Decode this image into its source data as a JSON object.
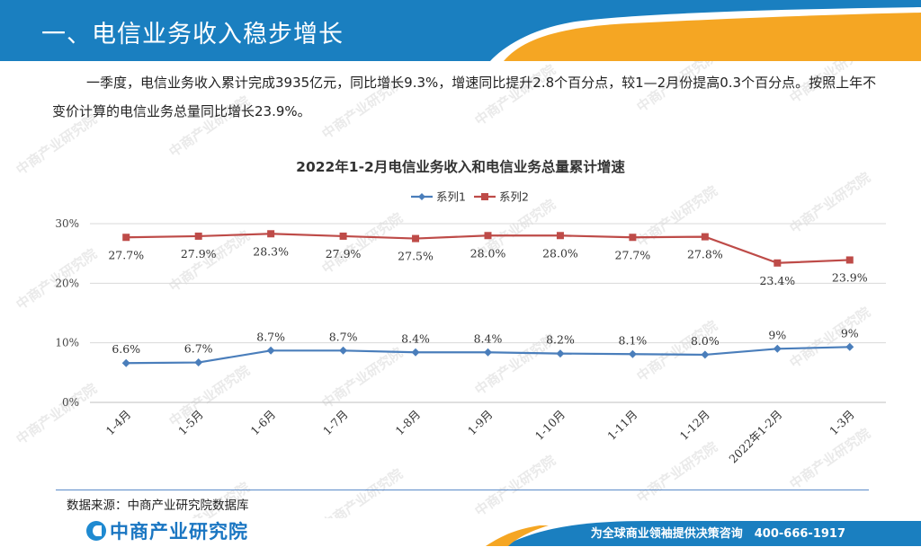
{
  "header": {
    "title": "一、电信业务收入稳步增长"
  },
  "intro": {
    "text": "一季度，电信业务收入累计完成3935亿元，同比增长9.3%，增速同比提升2.8个百分点，较1—2月份提高0.3个百分点。按照上年不变价计算的电信业务总量同比增长23.9%。"
  },
  "chart_data": {
    "type": "line",
    "title": "2022年1-2月电信业务收入和电信业务总量累计增速",
    "categories": [
      "1-4月",
      "1-5月",
      "1-6月",
      "1-7月",
      "1-8月",
      "1-9月",
      "1-10月",
      "1-11月",
      "1-12月",
      "2022年1-2月",
      "1-3月"
    ],
    "series": [
      {
        "name": "系列1",
        "values": [
          6.6,
          6.7,
          8.7,
          8.7,
          8.4,
          8.4,
          8.2,
          8.1,
          8.0,
          9.0,
          9.3
        ],
        "labels": [
          "6.6%",
          "6.7%",
          "8.7%",
          "8.7%",
          "8.4%",
          "8.4%",
          "8.2%",
          "8.1%",
          "8.0%",
          "9%",
          "9%"
        ],
        "color": "#4a7ebb",
        "marker": "diamond"
      },
      {
        "name": "系列2",
        "values": [
          27.7,
          27.9,
          28.3,
          27.9,
          27.5,
          28.0,
          28.0,
          27.7,
          27.8,
          23.4,
          23.9
        ],
        "labels": [
          "27.7%",
          "27.9%",
          "28.3%",
          "27.9%",
          "27.5%",
          "28.0%",
          "28.0%",
          "27.7%",
          "27.8%",
          "23.4%",
          "23.9%"
        ],
        "color": "#be4b48",
        "marker": "square"
      }
    ],
    "yticks": [
      "0%",
      "10%",
      "20%",
      "30%"
    ],
    "ylim": [
      0,
      30
    ],
    "legend": "top"
  },
  "source": {
    "text": "数据来源：中商产业研究院数据库"
  },
  "footer": {
    "logo_text": "中商产业研究院",
    "slogan": "为全球商业领袖提供决策咨询　400-666-1917"
  },
  "watermark": {
    "text": "中商产业研究院"
  },
  "colors": {
    "header_blue": "#1a7fc0",
    "accent_orange": "#f5a623"
  }
}
